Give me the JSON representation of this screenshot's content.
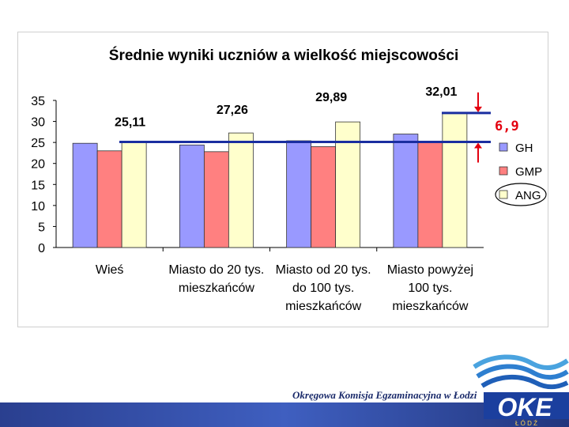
{
  "chart_data": {
    "type": "bar",
    "title": "Średnie wyniki uczniów a wielkość miejscowości",
    "categories": [
      [
        "Wieś"
      ],
      [
        "Miasto do 20 tys.",
        "mieszkańców"
      ],
      [
        "Miasto od 20 tys.",
        "do 100 tys.",
        "mieszkańców"
      ],
      [
        "Miasto powyżej",
        "100 tys.",
        "mieszkańców"
      ]
    ],
    "series": [
      {
        "name": "GH",
        "color": "#9999ff",
        "values": [
          24.8,
          24.4,
          25.4,
          27.0
        ]
      },
      {
        "name": "GMP",
        "color": "#ff8080",
        "values": [
          23.0,
          22.8,
          24.0,
          25.2
        ]
      },
      {
        "name": "ANG",
        "color": "#ffffcc",
        "values": [
          25.11,
          27.26,
          29.89,
          32.01
        ]
      }
    ],
    "yticks": [
      "0",
      "5",
      "10",
      "15",
      "20",
      "25",
      "30",
      "35"
    ],
    "ylim": [
      0,
      35
    ],
    "data_labels": [
      "25,11",
      "27,26",
      "29,89",
      "32,01"
    ],
    "reference_lines": [
      25.11,
      32.01
    ],
    "difference_label": "6,9",
    "legend_position": "right",
    "grid": false
  },
  "footer": {
    "institution": "Okręgowa Komisja Egzaminacyjna w Łodzi",
    "logo_text": "OKE",
    "logo_subtext": "Ł Ó D Ź"
  }
}
